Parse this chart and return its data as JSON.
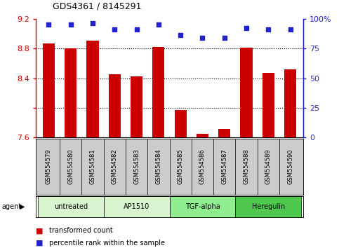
{
  "title": "GDS4361 / 8145291",
  "samples": [
    "GSM554579",
    "GSM554580",
    "GSM554581",
    "GSM554582",
    "GSM554583",
    "GSM554584",
    "GSM554585",
    "GSM554586",
    "GSM554587",
    "GSM554588",
    "GSM554589",
    "GSM554590"
  ],
  "red_values": [
    8.87,
    8.8,
    8.9,
    8.45,
    8.42,
    8.82,
    7.97,
    7.65,
    7.72,
    8.81,
    8.47,
    8.52
  ],
  "blue_values": [
    95,
    95,
    96,
    91,
    91,
    95,
    86,
    84,
    84,
    92,
    91,
    91
  ],
  "ylim_left": [
    7.6,
    9.2
  ],
  "ylim_right": [
    0,
    100
  ],
  "yticks_left": [
    7.6,
    8.0,
    8.4,
    8.8,
    9.2
  ],
  "yticks_right": [
    0,
    25,
    50,
    75,
    100
  ],
  "ytick_labels_left": [
    "7.6",
    "",
    "8.4",
    "8.8",
    "9.2"
  ],
  "ytick_labels_right": [
    "0",
    "25",
    "50",
    "75",
    "100%"
  ],
  "agents": [
    {
      "label": "untreated",
      "start": 0,
      "end": 3,
      "color": "#d8f5d0"
    },
    {
      "label": "AP1510",
      "start": 3,
      "end": 6,
      "color": "#d8f5d0"
    },
    {
      "label": "TGF-alpha",
      "start": 6,
      "end": 9,
      "color": "#90ee90"
    },
    {
      "label": "Heregulin",
      "start": 9,
      "end": 12,
      "color": "#50c850"
    }
  ],
  "bar_color": "#cc0000",
  "dot_color": "#2222cc",
  "bg_color": "#ffffff",
  "legend_items": [
    {
      "label": "transformed count",
      "color": "#cc0000"
    },
    {
      "label": "percentile rank within the sample",
      "color": "#2222cc"
    }
  ],
  "agent_label": "agent",
  "grid_lines": [
    8.0,
    8.4,
    8.8
  ],
  "grid_color": "#555555",
  "sample_bg": "#cccccc",
  "bar_width": 0.55
}
